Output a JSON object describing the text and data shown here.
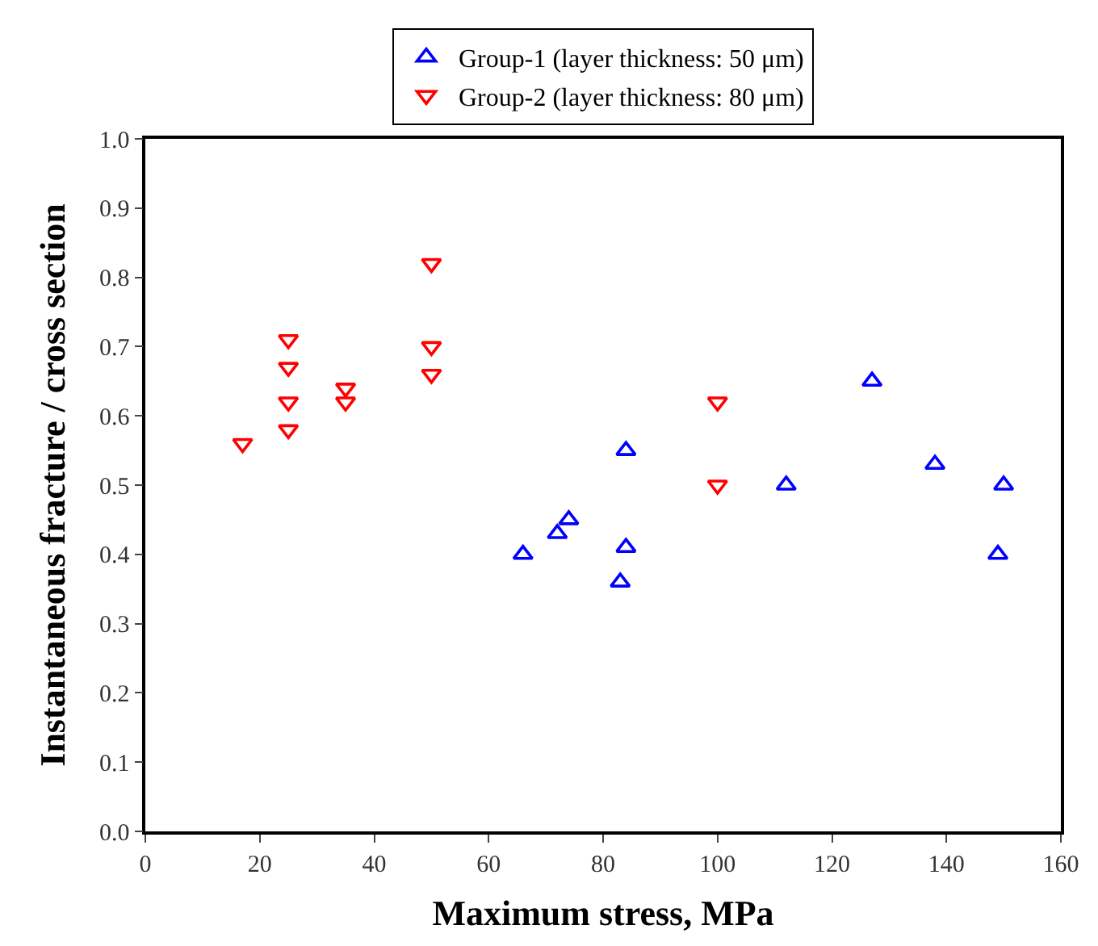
{
  "chart_data": {
    "type": "scatter",
    "xlabel": "Maximum stress, MPa",
    "ylabel": "Instantaneous fracture / cross section",
    "xlim": [
      0,
      160
    ],
    "xticks": [
      0,
      20,
      40,
      60,
      80,
      100,
      120,
      140,
      160
    ],
    "ylim": [
      0,
      1.0
    ],
    "yticks": [
      {
        "value": 0,
        "label": "0.0"
      },
      0.1,
      0.2,
      0.3,
      0.4,
      0.5,
      0.6,
      0.7,
      0.8,
      0.9,
      {
        "value": 1,
        "label": "1.0"
      }
    ],
    "legend": "top",
    "series": [
      {
        "name": "Group-1 (layer thickness: 50 μm)",
        "color": "#0000ff",
        "marker": "triangle",
        "x": [
          66,
          72,
          74,
          83,
          84,
          84,
          112,
          127,
          138,
          149,
          150
        ],
        "values": [
          0.4,
          0.43,
          0.45,
          0.36,
          0.41,
          0.55,
          0.5,
          0.65,
          0.53,
          0.4,
          0.5
        ]
      },
      {
        "name": "Group-2 (layer thickness: 80 μm)",
        "color": "#ff0000",
        "marker": "triangle-down",
        "x": [
          17,
          25,
          25,
          25,
          25,
          35,
          35,
          50,
          50,
          50,
          100,
          100
        ],
        "values": [
          0.56,
          0.58,
          0.62,
          0.67,
          0.71,
          0.62,
          0.64,
          0.66,
          0.7,
          0.82,
          0.5,
          0.62
        ]
      }
    ]
  }
}
